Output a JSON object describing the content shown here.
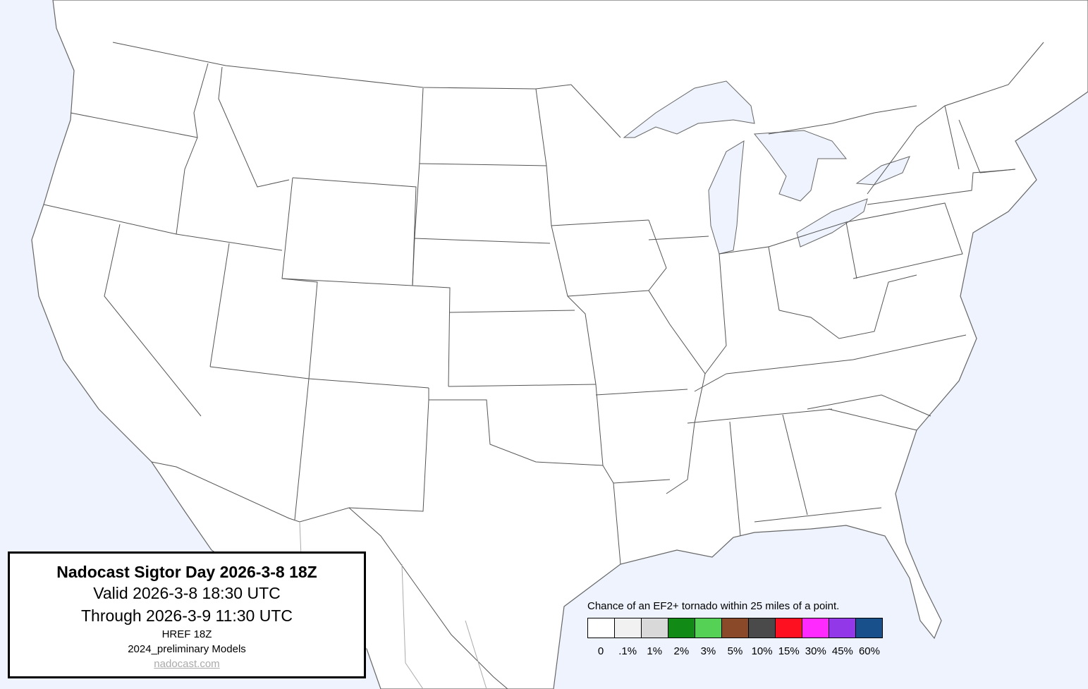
{
  "map": {
    "ocean_color": "#eef3fe",
    "land_color": "#ffffff"
  },
  "infobox": {
    "title": "Nadocast Sigtor Day 2026-3-8 18Z",
    "valid": "Valid 2026-3-8 18:30 UTC",
    "through": "Through 2026-3-9 11:30 UTC",
    "model": "HREF 18Z",
    "models_version": "2024_preliminary Models",
    "link": "nadocast.com"
  },
  "legend": {
    "title": "Chance of an EF2+ tornado within 25 miles of a point.",
    "bins": [
      {
        "label": "0",
        "color": "#ffffff"
      },
      {
        "label": ".1%",
        "color": "#f1f1f1"
      },
      {
        "label": "1%",
        "color": "#d9d9d9"
      },
      {
        "label": "2%",
        "color": "#128a16"
      },
      {
        "label": "3%",
        "color": "#55d255"
      },
      {
        "label": "5%",
        "color": "#8a4a2a"
      },
      {
        "label": "10%",
        "color": "#4a4a4a"
      },
      {
        "label": "15%",
        "color": "#fe1020"
      },
      {
        "label": "30%",
        "color": "#fe2afe"
      },
      {
        "label": "45%",
        "color": "#9238e8"
      },
      {
        "label": "60%",
        "color": "#17508a"
      }
    ]
  }
}
